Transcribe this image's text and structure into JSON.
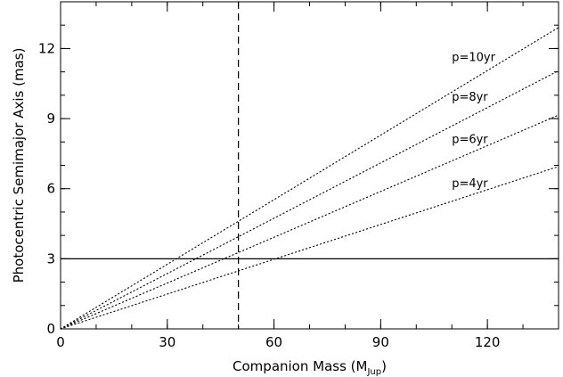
{
  "chart_data": {
    "type": "line",
    "xlabel": "Companion Mass (M",
    "xlabel_sub": "Jup",
    "xlabel_close": ")",
    "ylabel": "Photocentric Semimajor Axis (mas)",
    "xlim": [
      0,
      140
    ],
    "ylim": [
      0,
      14
    ],
    "x_ticks": [
      0,
      30,
      60,
      90,
      120
    ],
    "y_ticks": [
      0,
      3,
      6,
      9,
      12
    ],
    "x_minor_step": 10,
    "y_minor_step": 1,
    "grid": false,
    "series": [
      {
        "name": "p=10yr",
        "style": "dotted",
        "x": [
          0,
          140
        ],
        "y": [
          0,
          12.9
        ],
        "label_at": [
          110,
          11.65
        ]
      },
      {
        "name": "p=8yr",
        "style": "dotted",
        "x": [
          0,
          140
        ],
        "y": [
          0,
          11.05
        ],
        "label_at": [
          110,
          9.95
        ]
      },
      {
        "name": "p=6yr",
        "style": "dotted",
        "x": [
          0,
          140
        ],
        "y": [
          0,
          9.15
        ],
        "label_at": [
          110,
          8.15
        ]
      },
      {
        "name": "p=4yr",
        "style": "dotted",
        "x": [
          0,
          140
        ],
        "y": [
          0,
          6.95
        ],
        "label_at": [
          110,
          6.25
        ]
      }
    ],
    "reference_lines": [
      {
        "orientation": "vertical",
        "value": 50,
        "style": "dashed"
      },
      {
        "orientation": "horizontal",
        "value": 3,
        "style": "solid"
      }
    ]
  }
}
